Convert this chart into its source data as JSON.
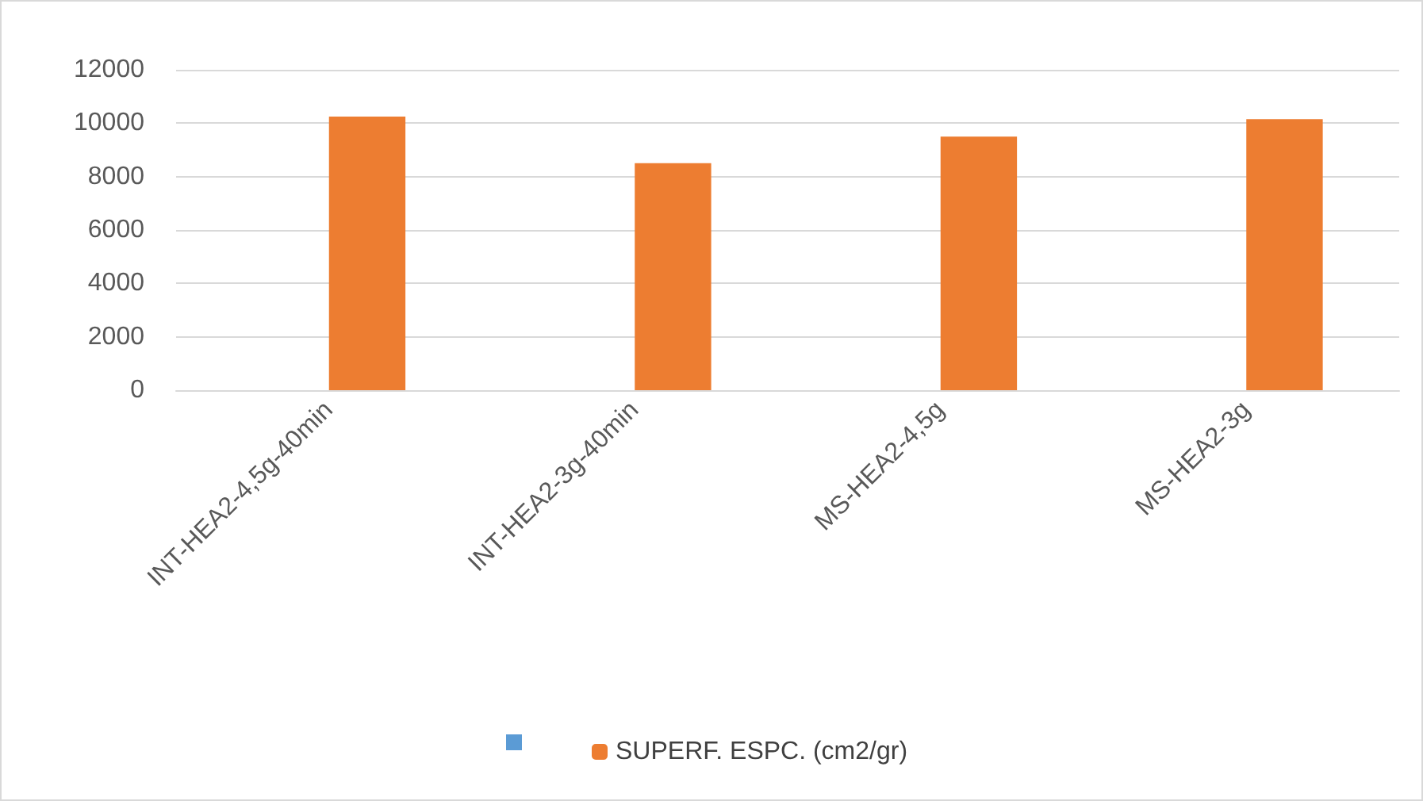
{
  "chart_data": {
    "type": "bar",
    "categories": [
      "INT-HEA2-4,5g-40min",
      "INT-HEA2-3g-40min",
      "MS-HEA2-4,5g",
      "MS-HEA2-3g"
    ],
    "series": [
      {
        "color": "#5b9bd5",
        "values": [
          null,
          null,
          null,
          null
        ]
      },
      {
        "name": "SUPERF. ESPC. (cm2/gr)",
        "color": "#ed7d31",
        "values": [
          10250,
          8500,
          9500,
          10150
        ]
      }
    ],
    "ylim": [
      0,
      12000
    ],
    "yticks": [
      0,
      2000,
      4000,
      6000,
      8000,
      10000,
      12000
    ],
    "grid": "y",
    "legend": "bottom"
  }
}
